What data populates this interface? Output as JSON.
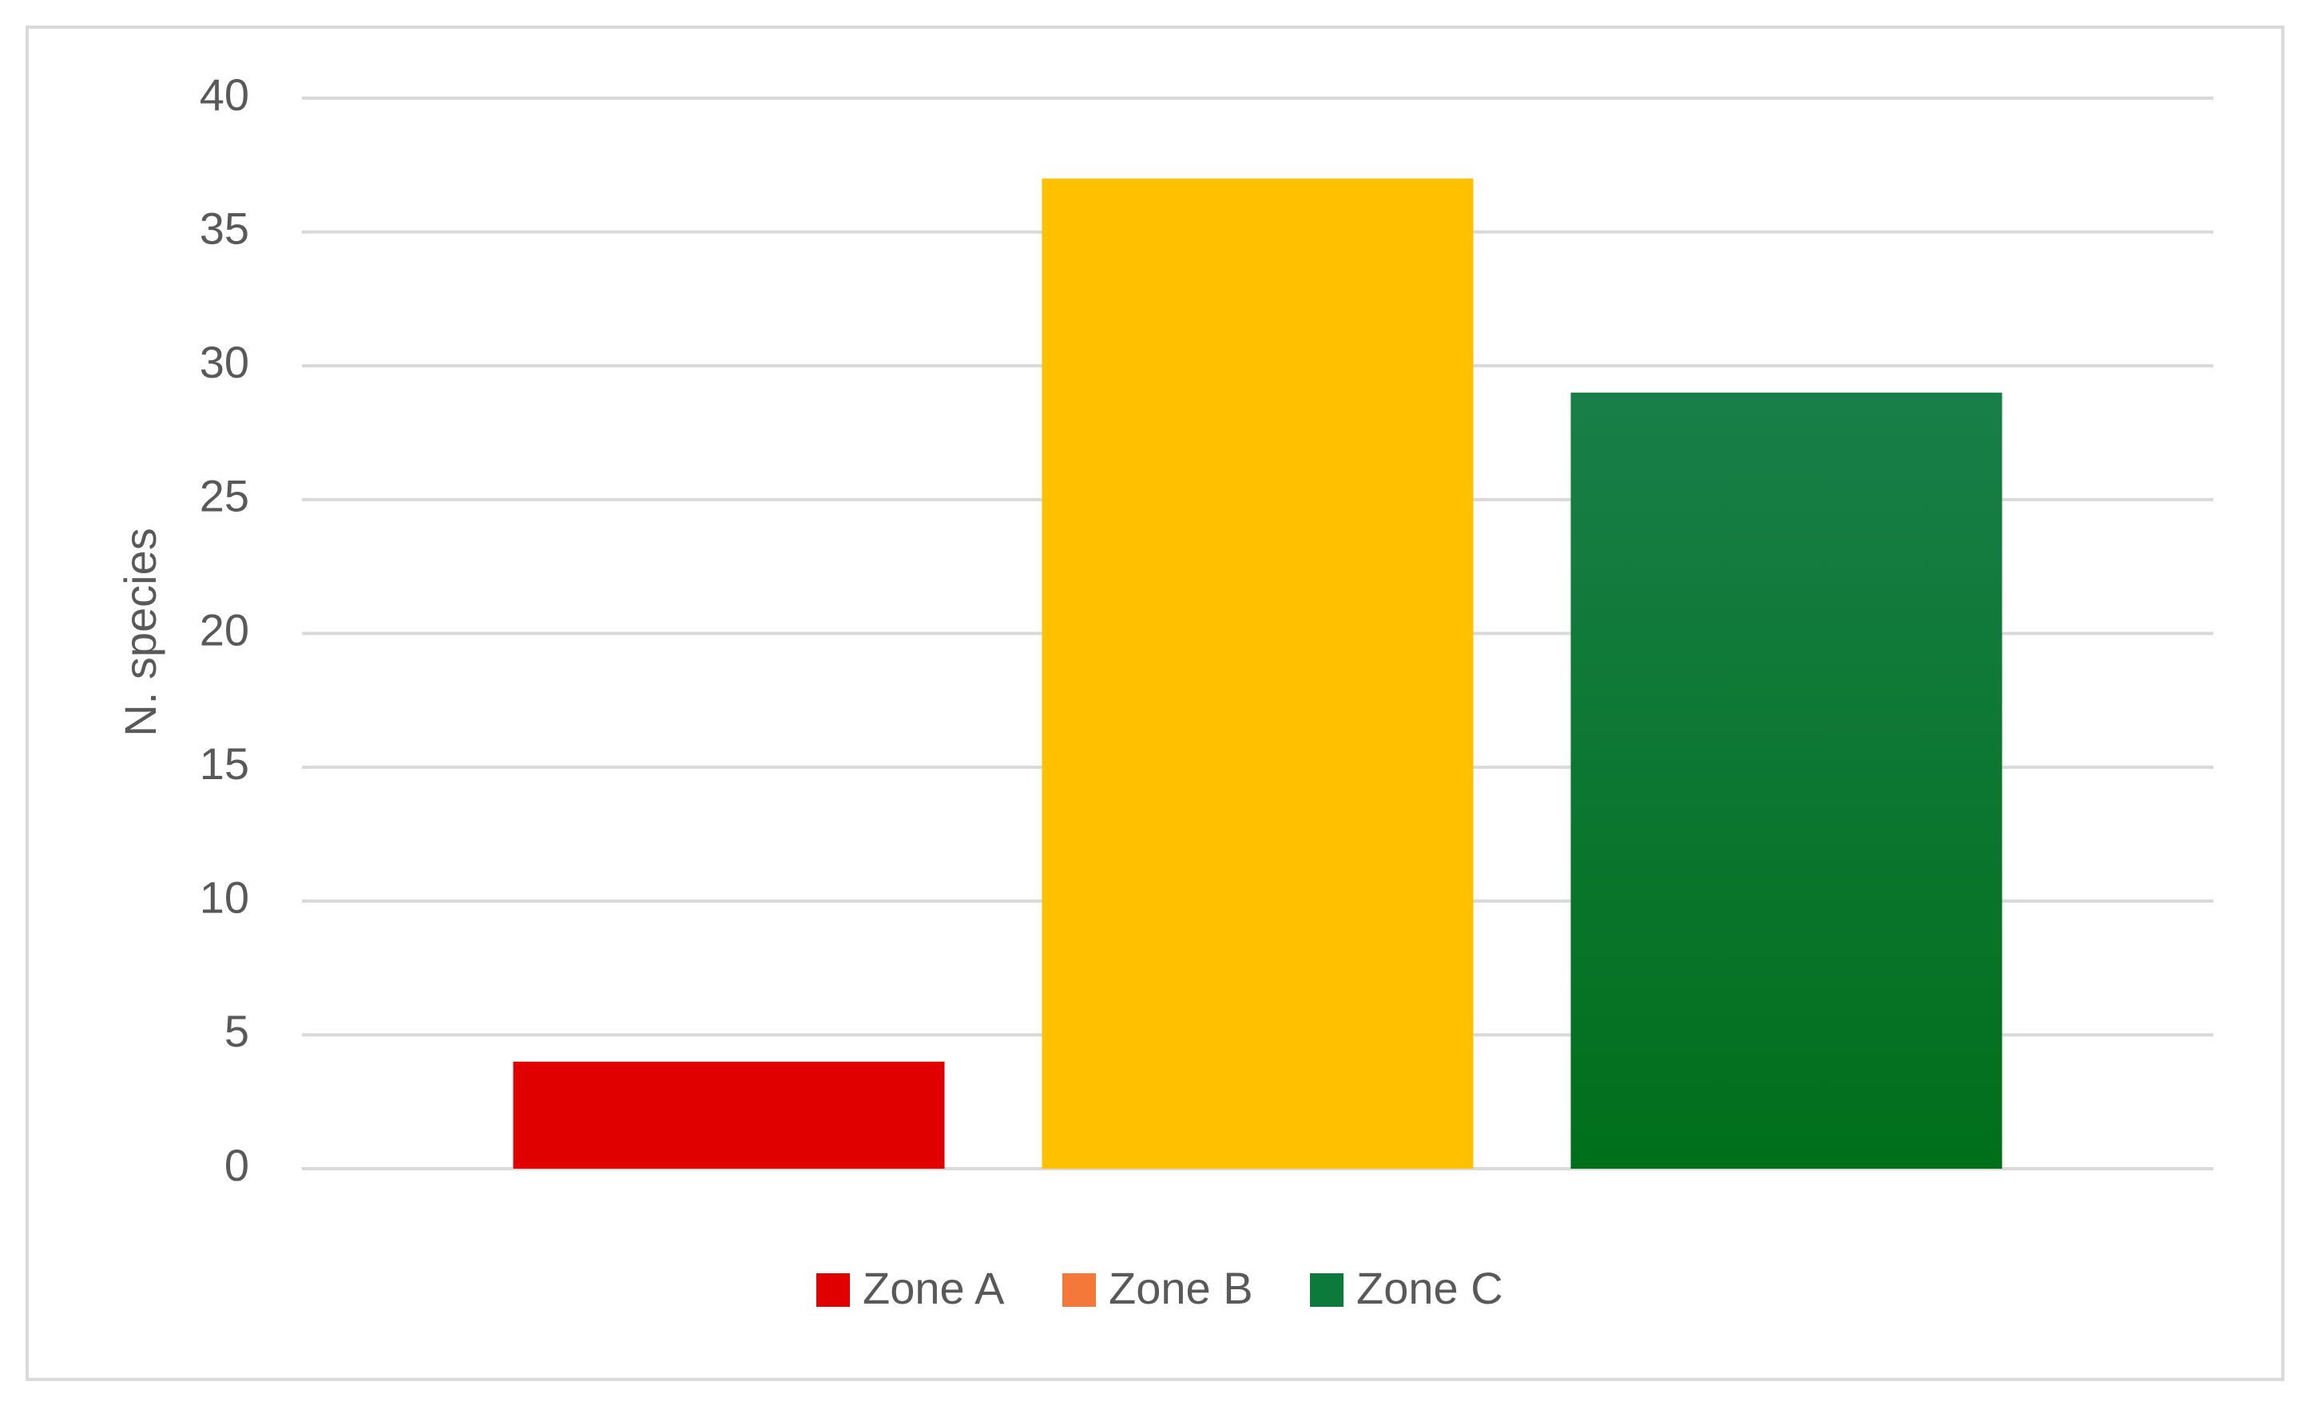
{
  "chart_data": {
    "type": "bar",
    "y_label": "N. species",
    "series": [
      {
        "name": "Zone A",
        "color": "#e00000",
        "legend_color": "#e00000",
        "values": [
          4
        ]
      },
      {
        "name": "Zone B",
        "color": "#ffc000",
        "legend_color": "#f4783a",
        "values": [
          37
        ]
      },
      {
        "name": "Zone C",
        "color": [
          "#187f48",
          "#006f1a"
        ],
        "legend_color": "#0b7a3b",
        "values": [
          29
        ]
      }
    ],
    "ylim": [
      0,
      40
    ],
    "yticks": [
      0,
      5,
      10,
      15,
      20,
      25,
      30,
      35,
      40
    ],
    "grid": true,
    "legend": "bottom"
  }
}
